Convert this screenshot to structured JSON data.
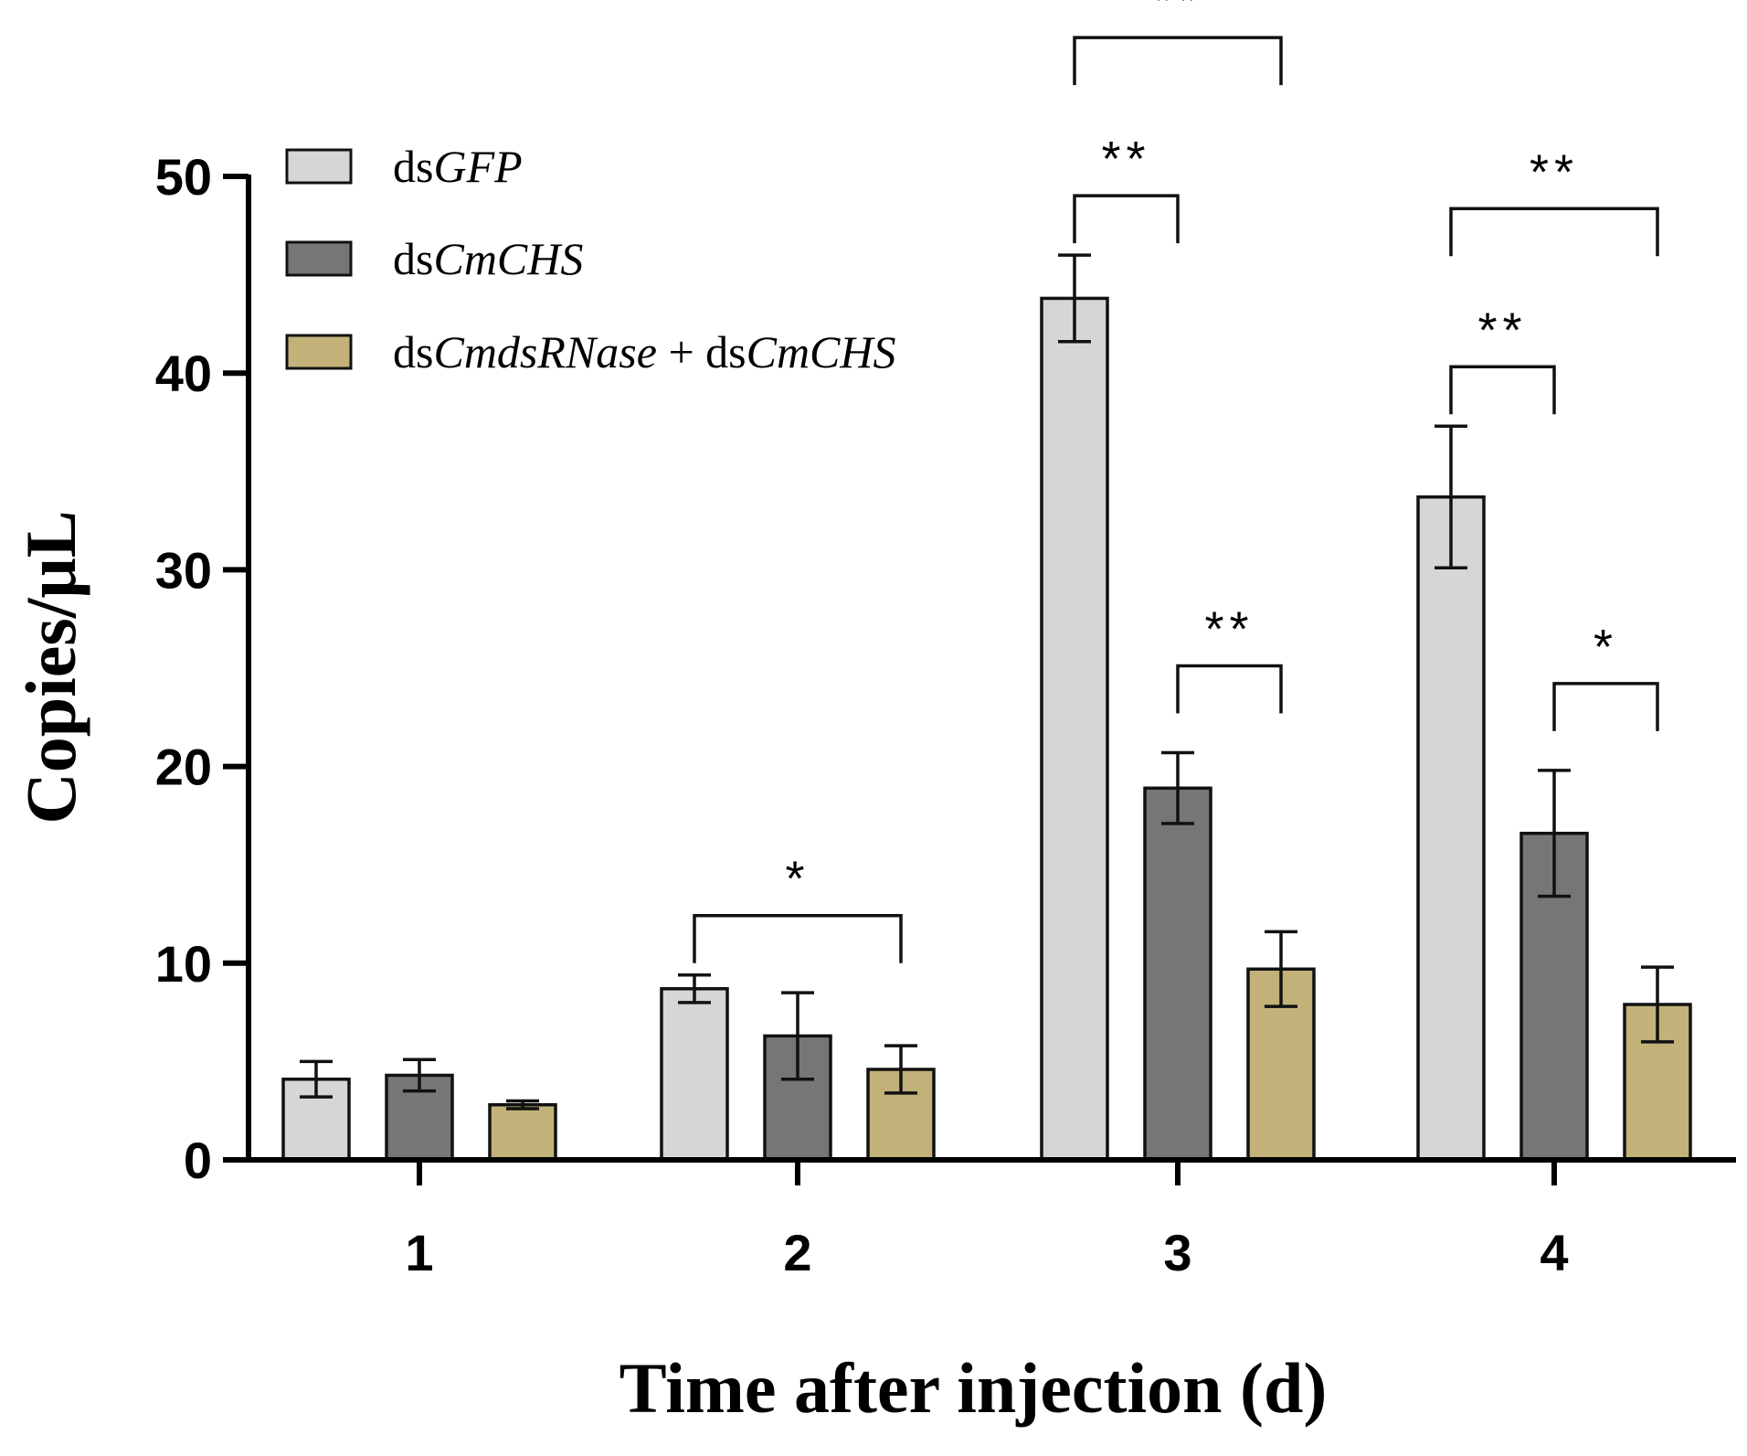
{
  "chart_data": {
    "type": "bar",
    "title": "",
    "xlabel": "Time after injection (d)",
    "ylabel": "Copies/μL",
    "ylim": [
      0,
      50
    ],
    "yticks": [
      0,
      10,
      20,
      30,
      40,
      50
    ],
    "categories": [
      "1",
      "2",
      "3",
      "4"
    ],
    "series": [
      {
        "name": "dsGFP",
        "legend_parts": [
          {
            "text": "ds",
            "italic": false
          },
          {
            "text": "GFP",
            "italic": true
          }
        ],
        "color": "#d6d6d6",
        "values": [
          4.1,
          8.7,
          43.8,
          33.7
        ],
        "errors": [
          0.9,
          0.7,
          2.2,
          3.6
        ]
      },
      {
        "name": "dsCmCHS",
        "legend_parts": [
          {
            "text": "ds",
            "italic": false
          },
          {
            "text": "CmCHS",
            "italic": true
          }
        ],
        "color": "#767676",
        "values": [
          4.3,
          6.3,
          18.9,
          16.6
        ],
        "errors": [
          0.8,
          2.2,
          1.8,
          3.2
        ]
      },
      {
        "name": "dsCmdsRNase + dsCmCHS",
        "legend_parts": [
          {
            "text": "ds",
            "italic": false
          },
          {
            "text": "CmdsRNase",
            "italic": true
          },
          {
            "text": " + ds",
            "italic": false
          },
          {
            "text": "CmCHS",
            "italic": true
          }
        ],
        "color": "#c2b27a",
        "values": [
          2.8,
          4.6,
          9.7,
          7.9
        ],
        "errors": [
          0.2,
          1.2,
          1.9,
          1.9
        ]
      }
    ],
    "significance": [
      {
        "category": 1,
        "from_series": 0,
        "to_series": 2,
        "label": "*",
        "level": 1
      },
      {
        "category": 2,
        "from_series": 0,
        "to_series": 2,
        "label": "**",
        "level": 2
      },
      {
        "category": 2,
        "from_series": 0,
        "to_series": 1,
        "label": "**",
        "level": 1
      },
      {
        "category": 2,
        "from_series": 1,
        "to_series": 2,
        "label": "**",
        "level": 0
      },
      {
        "category": 3,
        "from_series": 0,
        "to_series": 2,
        "label": "**",
        "level": 2
      },
      {
        "category": 3,
        "from_series": 0,
        "to_series": 1,
        "label": "**",
        "level": 1
      },
      {
        "category": 3,
        "from_series": 1,
        "to_series": 2,
        "label": "*",
        "level": 0
      }
    ]
  }
}
